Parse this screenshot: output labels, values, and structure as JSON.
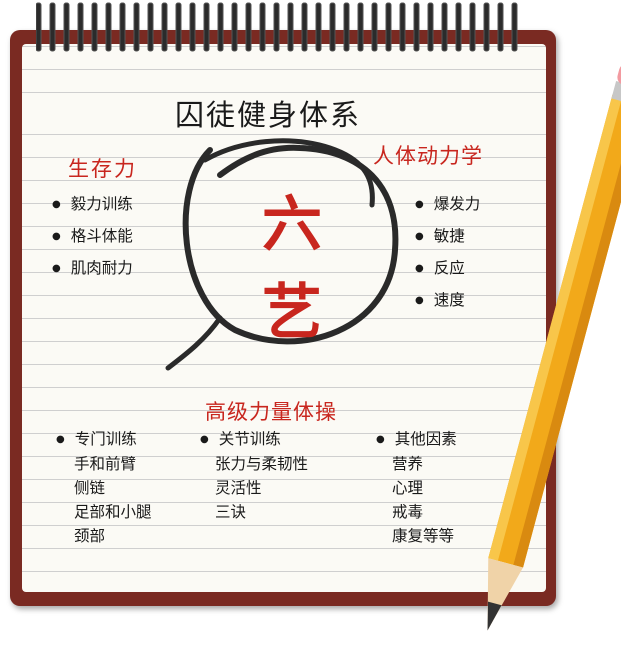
{
  "title": "囚徒健身体系",
  "center": {
    "line1": "六",
    "line2": "艺"
  },
  "survival": {
    "heading": "生存力",
    "items": [
      "毅力训练",
      "格斗体能",
      "肌肉耐力"
    ]
  },
  "dynamics": {
    "heading": "人体动力学",
    "items": [
      "爆发力",
      "敏捷",
      "反应",
      "速度"
    ]
  },
  "advanced": {
    "heading": "高级力量体操",
    "columns": [
      {
        "label": "专门训练",
        "items": [
          "手和前臂",
          "侧链",
          "足部和小腿",
          "颈部"
        ]
      },
      {
        "label": "关节训练",
        "items": [
          "张力与柔韧性",
          "灵活性",
          "三诀"
        ]
      },
      {
        "label": "其他因素",
        "items": [
          "营养",
          "心理",
          "戒毒",
          "康复等等"
        ]
      }
    ]
  }
}
